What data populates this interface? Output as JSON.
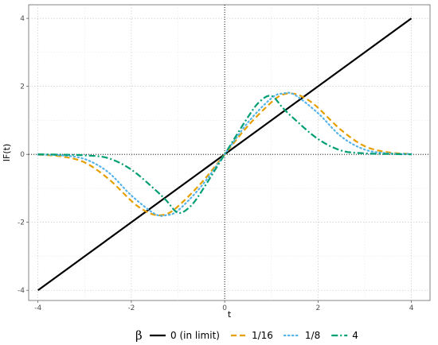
{
  "chart_data": {
    "type": "line",
    "title": "",
    "xlabel": "t",
    "ylabel": "IF(t)",
    "xlim": [
      -4.2,
      4.4
    ],
    "ylim": [
      -4.3,
      4.4
    ],
    "x_ticks": [
      -4,
      -2,
      0,
      2,
      4
    ],
    "y_ticks": [
      -4,
      -2,
      0,
      2,
      4
    ],
    "x_tick_labels": [
      "-4",
      "-2",
      "0",
      "2",
      "4"
    ],
    "y_tick_labels": [
      "-4",
      "-2",
      "0",
      "2",
      "4"
    ],
    "grid": true,
    "reference_lines": {
      "x": 0,
      "y": 0
    },
    "legend": {
      "title": "β",
      "position": "bottom"
    },
    "series": [
      {
        "name": "0 (in limit)",
        "color": "#000000",
        "dash": "solid",
        "x": [
          -4,
          -3,
          -2,
          -1,
          0,
          1,
          2,
          3,
          4
        ],
        "y": [
          -4,
          -3,
          -2,
          -1,
          0,
          1,
          2,
          3,
          4
        ]
      },
      {
        "name": "1/16",
        "color": "#E69F00",
        "dash": "dashed",
        "x": [
          -4,
          -3.5,
          -3,
          -2.5,
          -2,
          -1.75,
          -1.5,
          -1.25,
          -1,
          -0.5,
          0,
          0.5,
          1,
          1.25,
          1.5,
          1.75,
          2,
          2.5,
          3,
          3.5,
          4
        ],
        "y": [
          -0.01,
          -0.06,
          -0.24,
          -0.71,
          -1.37,
          -1.63,
          -1.78,
          -1.76,
          -1.53,
          -0.84,
          0,
          0.84,
          1.53,
          1.76,
          1.78,
          1.63,
          1.37,
          0.71,
          0.24,
          0.06,
          0.01
        ]
      },
      {
        "name": "1/8",
        "color": "#56B4E9",
        "dash": "dotted",
        "x": [
          -4,
          -3.5,
          -3,
          -2.5,
          -2,
          -1.5,
          -1.25,
          -1,
          -0.5,
          0,
          0.5,
          1,
          1.25,
          1.5,
          2,
          2.5,
          3,
          3.5,
          4
        ],
        "y": [
          -0.01,
          -0.03,
          -0.14,
          -0.52,
          -1.21,
          -1.75,
          -1.79,
          -1.65,
          -0.94,
          0,
          0.94,
          1.65,
          1.79,
          1.75,
          1.21,
          0.52,
          0.14,
          0.03,
          0.01
        ]
      },
      {
        "name": "4",
        "color": "#009E73",
        "dash": "dotdash",
        "x": [
          -4,
          -3.5,
          -3,
          -2.5,
          -2,
          -1.5,
          -1.25,
          -1,
          -0.75,
          -0.5,
          0,
          0.5,
          0.75,
          1,
          1.25,
          1.5,
          2,
          2.5,
          3,
          3.5,
          4
        ],
        "y": [
          0,
          -0.01,
          -0.03,
          -0.11,
          -0.45,
          -1.03,
          -1.36,
          -1.72,
          -1.55,
          -1.1,
          0,
          1.1,
          1.55,
          1.72,
          1.36,
          1.03,
          0.45,
          0.11,
          0.03,
          0.01,
          0
        ]
      }
    ]
  }
}
